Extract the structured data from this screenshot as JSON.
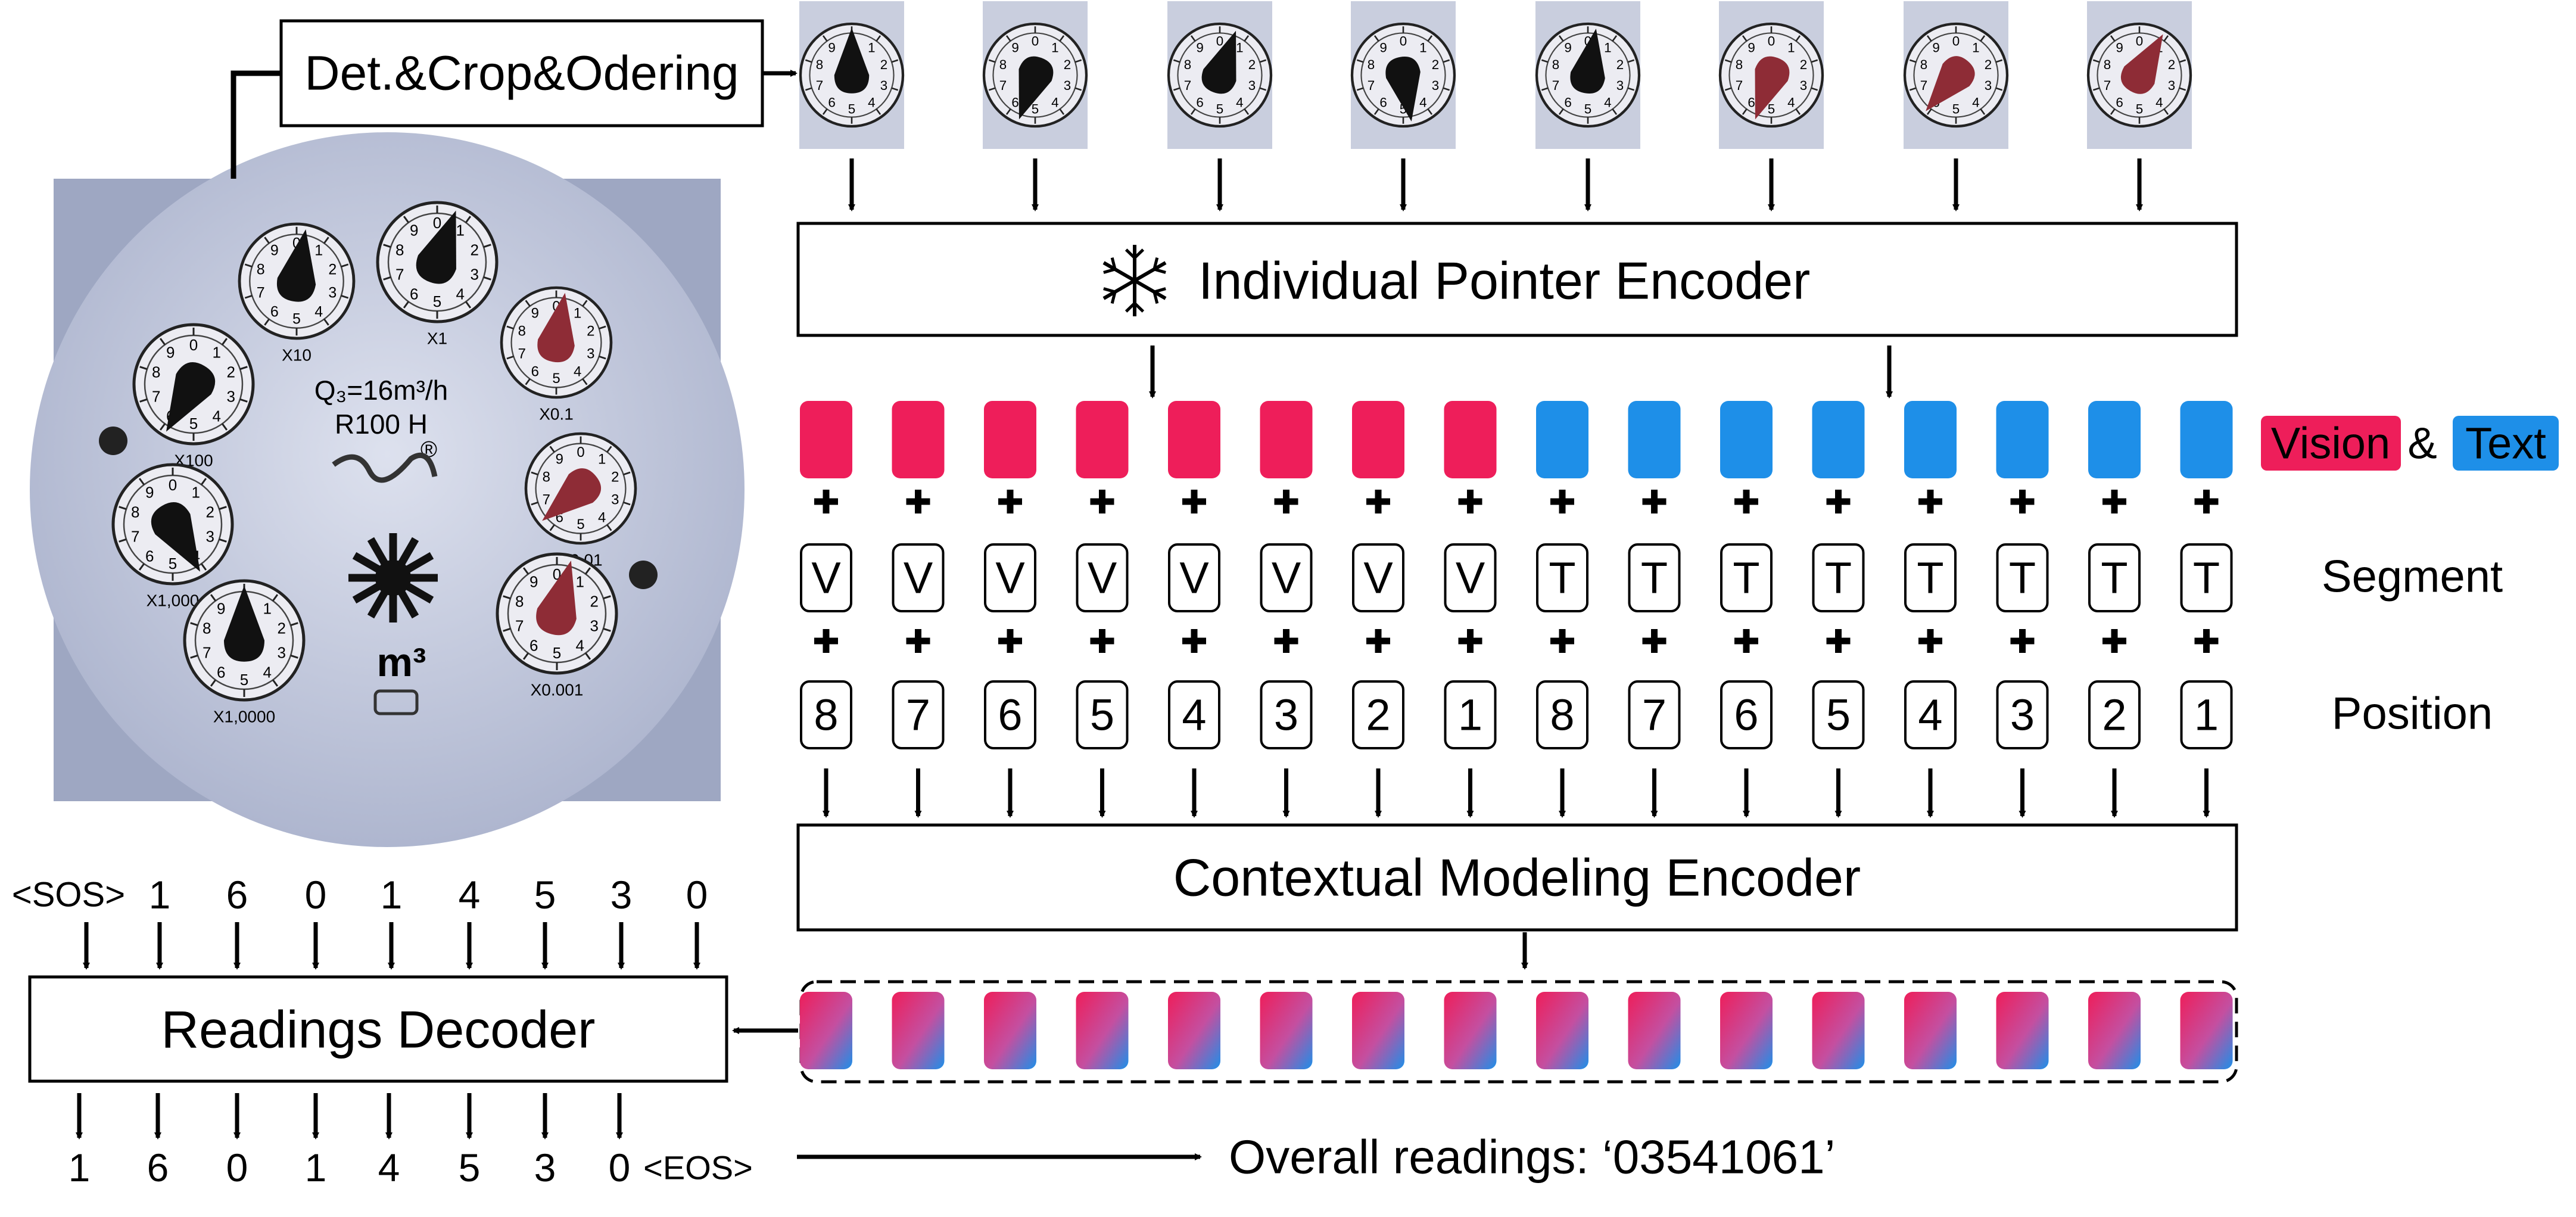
{
  "boxes": {
    "detect": "Det.&Crop&Odering",
    "pointer_encoder": "Individual Pointer Encoder",
    "context_encoder": "Contextual Modeling Encoder",
    "decoder": "Readings Decoder"
  },
  "legend": {
    "vision": "Vision",
    "amp": "&",
    "text": "Text"
  },
  "row_labels": {
    "segment": "Segment",
    "position": "Position"
  },
  "tokens": {
    "segments": [
      "V",
      "V",
      "V",
      "V",
      "V",
      "V",
      "V",
      "V",
      "T",
      "T",
      "T",
      "T",
      "T",
      "T",
      "T",
      "T"
    ],
    "positions": [
      "8",
      "7",
      "6",
      "5",
      "4",
      "3",
      "2",
      "1",
      "8",
      "7",
      "6",
      "5",
      "4",
      "3",
      "2",
      "1"
    ]
  },
  "decoder_inputs": [
    "<SOS>",
    "1",
    "6",
    "0",
    "1",
    "4",
    "5",
    "3",
    "0"
  ],
  "decoder_outputs": [
    "1",
    "6",
    "0",
    "1",
    "4",
    "5",
    "3",
    "0",
    "<EOS>"
  ],
  "overall_reading": "Overall readings: ‘03541061’",
  "meter_face": {
    "spec_line1": "Q₃=16m³/h",
    "spec_line2": "R100  H",
    "unit": "m³",
    "registered": "®",
    "dial_multipliers": [
      "X10",
      "X1",
      "X0.1",
      "X100",
      "X0.01",
      "X1,000",
      "X0.001",
      "X1,0000"
    ]
  },
  "colors": {
    "vision": "#ee1e5a",
    "text": "#1e8fe8",
    "meter_bg": "#c6ccdf",
    "dial_fill": "#ececf2",
    "pointer_black": "#111111",
    "pointer_red": "#8e2c36"
  },
  "icons": {
    "pointer_encoder": "snowflake-icon"
  }
}
